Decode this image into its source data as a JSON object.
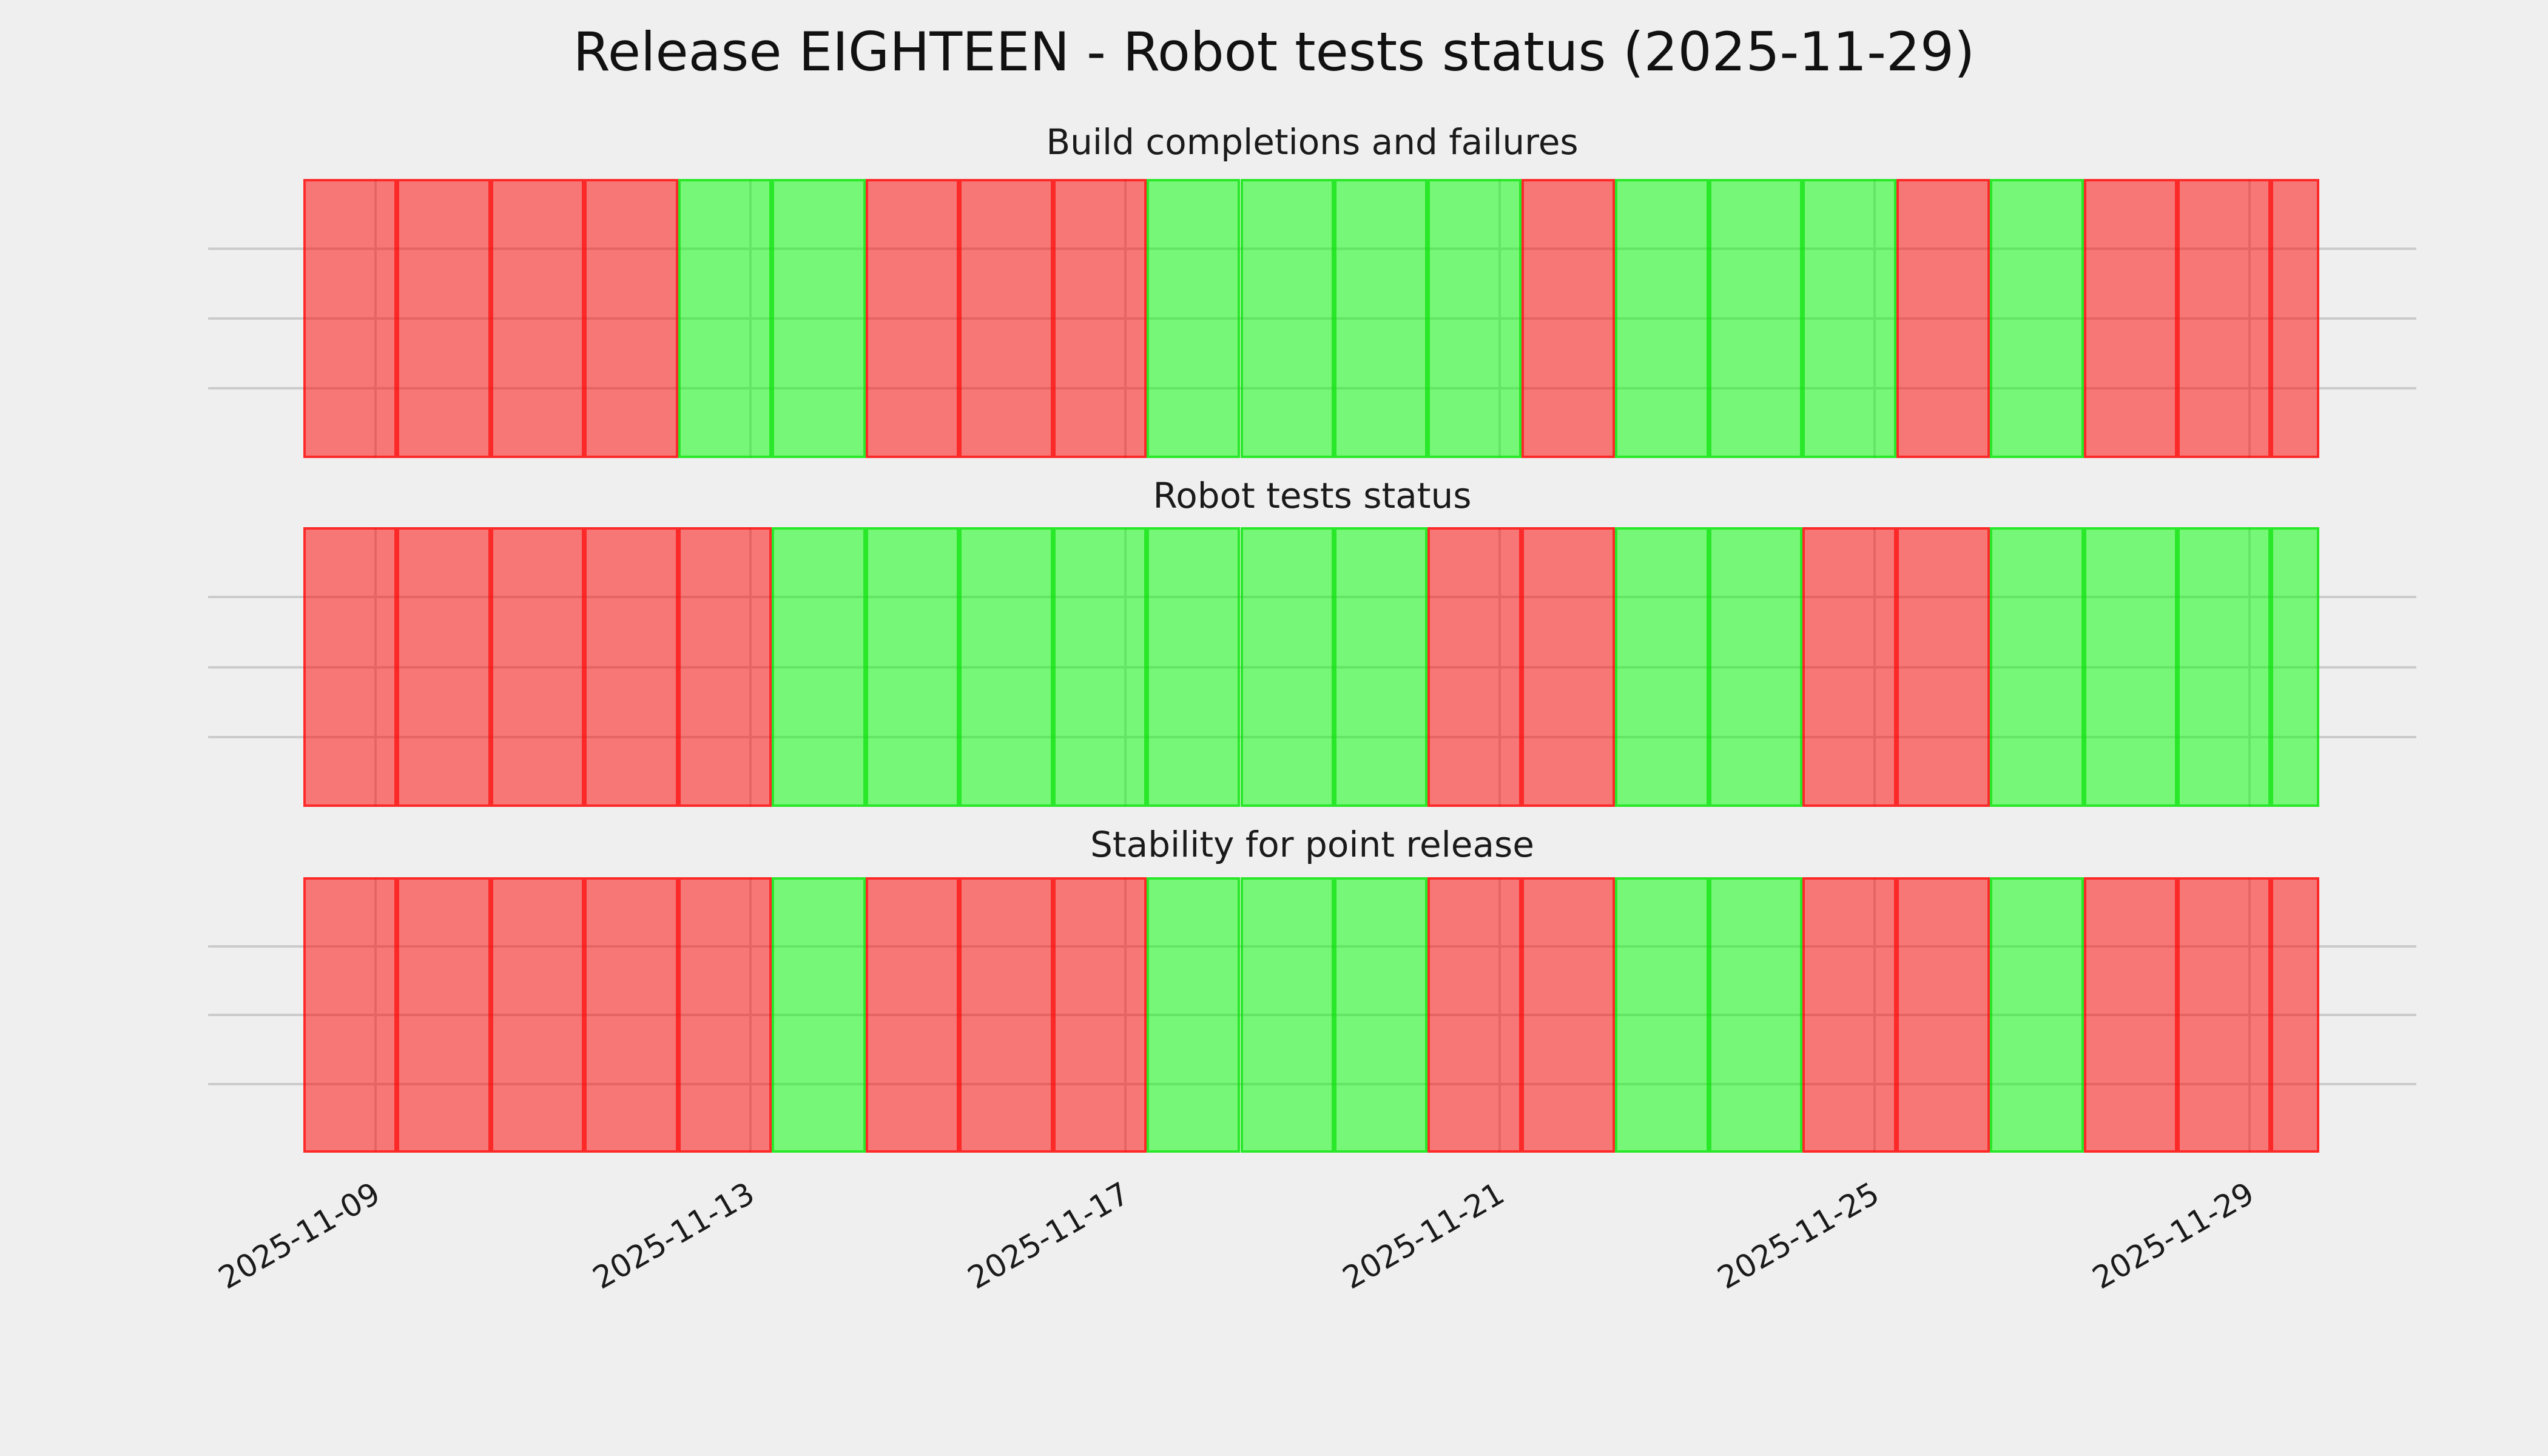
{
  "header": {
    "title": "Release EIGHTEEN - Robot tests status (2025-11-29)"
  },
  "chart_data": {
    "type": "heatmap",
    "title": "Release EIGHTEEN - Robot tests status (2025-11-29)",
    "description": "Three stacked daily pass/fail status strips; green = pass, red = fail",
    "dates": [
      "2025-11-09",
      "2025-11-10",
      "2025-11-11",
      "2025-11-12",
      "2025-11-13",
      "2025-11-14",
      "2025-11-15",
      "2025-11-16",
      "2025-11-17",
      "2025-11-18",
      "2025-11-19",
      "2025-11-20",
      "2025-11-21",
      "2025-11-22",
      "2025-11-23",
      "2025-11-24",
      "2025-11-25",
      "2025-11-26",
      "2025-11-27",
      "2025-11-28",
      "2025-11-29"
    ],
    "x_tick_labels": [
      "2025-11-09",
      "2025-11-13",
      "2025-11-17",
      "2025-11-21",
      "2025-11-25",
      "2025-11-29"
    ],
    "x_tick_day_indices": [
      0,
      4,
      8,
      12,
      16,
      20
    ],
    "series": [
      {
        "name": "Build completions and failures",
        "statuses": [
          "fail",
          "fail",
          "fail",
          "fail",
          "pass",
          "pass",
          "fail",
          "fail",
          "fail",
          "pass",
          "pass",
          "pass",
          "pass",
          "fail",
          "pass",
          "pass",
          "pass",
          "fail",
          "pass",
          "fail",
          "fail"
        ]
      },
      {
        "name": "Robot tests status",
        "statuses": [
          "fail",
          "fail",
          "fail",
          "fail",
          "fail",
          "pass",
          "pass",
          "pass",
          "pass",
          "pass",
          "pass",
          "pass",
          "fail",
          "fail",
          "pass",
          "pass",
          "fail",
          "fail",
          "pass",
          "pass",
          "pass"
        ]
      },
      {
        "name": "Stability for point release",
        "statuses": [
          "fail",
          "fail",
          "fail",
          "fail",
          "fail",
          "pass",
          "fail",
          "fail",
          "fail",
          "pass",
          "pass",
          "pass",
          "fail",
          "fail",
          "pass",
          "pass",
          "fail",
          "fail",
          "pass",
          "fail",
          "fail"
        ]
      }
    ],
    "status_colors": {
      "fail_fill": "rgba(255,0,0,0.50)",
      "pass_fill": "rgba(0,255,0,0.50)",
      "fail_edge": "rgba(255,0,0,0.65)",
      "pass_edge": "rgba(0,225,0,0.65)",
      "fail_face_hex": "#f87676",
      "pass_face_hex": "#78f778"
    },
    "final_partial_day": {
      "status_follows_last_day": true,
      "width_fraction": 0.5
    },
    "background_color": "#efefef",
    "grid": {
      "visible": true,
      "color": "#cbcbcb",
      "h_lines_per_panel": 3,
      "v_lines_at_ticks": true
    },
    "legend": {
      "visible": false
    },
    "ylabel": "",
    "xlabel": ""
  }
}
